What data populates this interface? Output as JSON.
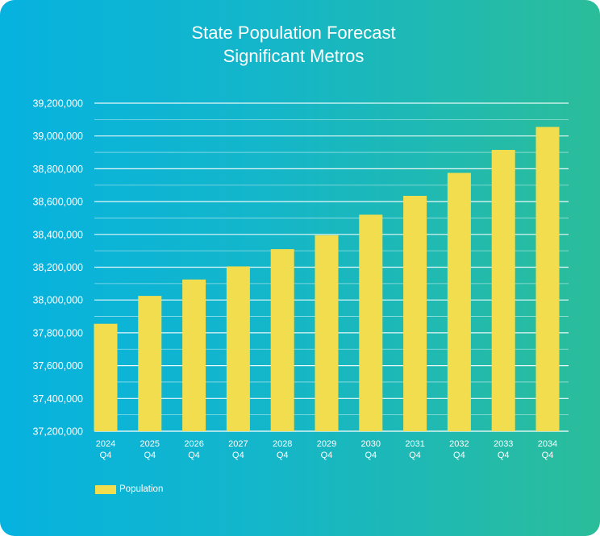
{
  "chart_data": {
    "type": "bar",
    "title": "State Population Forecast",
    "subtitle": "Significant Metros",
    "categories": [
      [
        "2024",
        "Q4"
      ],
      [
        "2025",
        "Q4"
      ],
      [
        "2026",
        "Q4"
      ],
      [
        "2027",
        "Q4"
      ],
      [
        "2028",
        "Q4"
      ],
      [
        "2029",
        "Q4"
      ],
      [
        "2030",
        "Q4"
      ],
      [
        "2031",
        "Q4"
      ],
      [
        "2032",
        "Q4"
      ],
      [
        "2033",
        "Q4"
      ],
      [
        "2034",
        "Q4"
      ]
    ],
    "series": [
      {
        "name": "Population",
        "color": "#f2dd4f",
        "values": [
          37855000,
          38025000,
          38125000,
          38205000,
          38310000,
          38395000,
          38520000,
          38635000,
          38775000,
          38915000,
          39055000
        ]
      }
    ],
    "ylim": [
      37200000,
      39200000
    ],
    "yticks": [
      "37,200,000",
      "37,400,000",
      "37,600,000",
      "37,800,000",
      "38,000,000",
      "38,200,000",
      "38,400,000",
      "38,600,000",
      "38,800,000",
      "39,000,000",
      "39,200,000"
    ],
    "grid": true,
    "legend_position": "bottom-left"
  }
}
